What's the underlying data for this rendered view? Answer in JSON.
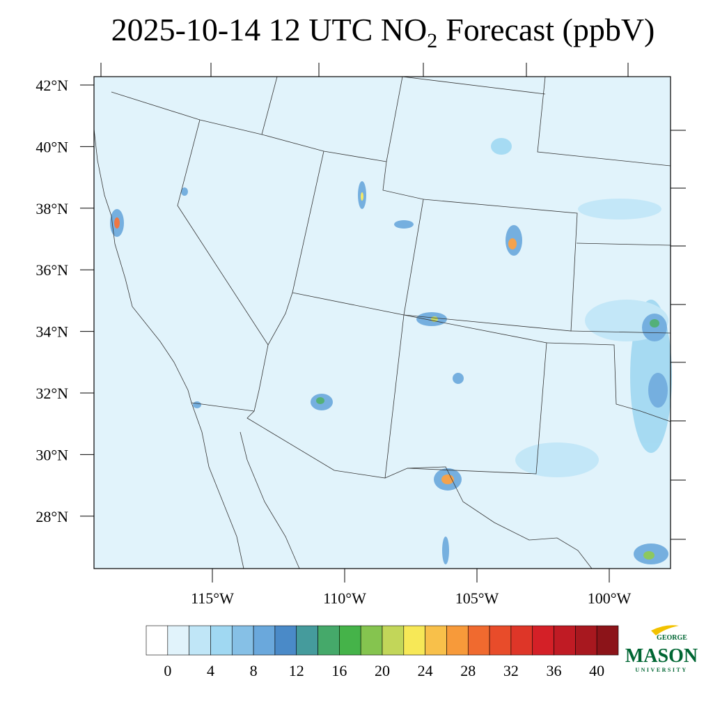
{
  "header": {
    "title": [
      "2025-10-14 12 UTC NO",
      "2",
      "Forecast (ppbV)"
    ]
  },
  "map": {
    "lat_labels": [
      {
        "value": 42,
        "label": "42°N"
      },
      {
        "value": 40,
        "label": "40°N"
      },
      {
        "value": 38,
        "label": "38°N"
      },
      {
        "value": 36,
        "label": "36°N"
      },
      {
        "value": 34,
        "label": "34°N"
      },
      {
        "value": 32,
        "label": "32°N"
      },
      {
        "value": 30,
        "label": "30°N"
      },
      {
        "value": 28,
        "label": "28°N"
      }
    ],
    "lon_labels": [
      {
        "value": -115,
        "label": "115°W"
      },
      {
        "value": -110,
        "label": "110°W"
      },
      {
        "value": -105,
        "label": "105°W"
      },
      {
        "value": -100,
        "label": "100°W"
      }
    ]
  },
  "colorbar": {
    "colors": [
      "#ffffff",
      "#e1f3fb",
      "#c0e6f7",
      "#a0d8f2",
      "#86c0e6",
      "#6aa8dc",
      "#4a8ac8",
      "#459b9c",
      "#45a96a",
      "#45b349",
      "#85c44f",
      "#c2d659",
      "#f7e857",
      "#f8c04a",
      "#f79a3a",
      "#f06a2f",
      "#e84c2a",
      "#de3628",
      "#d42027",
      "#c01b24",
      "#a8181f",
      "#8c1419"
    ],
    "ticks": [
      0,
      4,
      8,
      12,
      16,
      20,
      24,
      28,
      32,
      36,
      40
    ]
  },
  "logo": {
    "top": "GEORGE",
    "main": "MASON",
    "bottom": "UNIVERSITY"
  }
}
